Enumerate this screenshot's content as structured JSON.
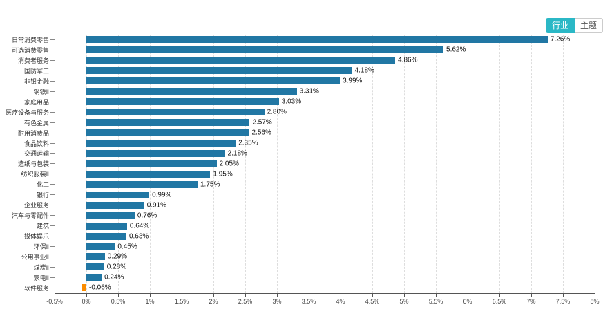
{
  "toolbar": {
    "buttons": [
      {
        "label": "行业",
        "active": true
      },
      {
        "label": "主题",
        "active": false
      }
    ]
  },
  "colors": {
    "bar_positive": "#2177a4",
    "bar_negative": "#fb8c00",
    "toggle_active": "#2bb8c6",
    "grid_line": "#dddddd",
    "axis_line": "#555555"
  },
  "chart_data": {
    "type": "bar",
    "orientation": "horizontal",
    "title": "",
    "xlabel": "",
    "ylabel": "",
    "grid": "vertical-dashed",
    "xlim": [
      -0.5,
      8
    ],
    "categories": [
      "日常消费零售",
      "可选消费零售",
      "消费者服务",
      "国防军工",
      "非银金融",
      "钢铁Ⅱ",
      "家庭用品",
      "医疗设备与服务",
      "有色金属",
      "耐用消费品",
      "食品饮料",
      "交通运输",
      "造纸与包装",
      "纺织服装Ⅱ",
      "化工",
      "银行",
      "企业服务",
      "汽车与零配件",
      "建筑",
      "媒体娱乐",
      "环保Ⅱ",
      "公用事业Ⅱ",
      "煤炭Ⅱ",
      "家电Ⅱ",
      "软件服务"
    ],
    "values": [
      7.26,
      5.62,
      4.86,
      4.18,
      3.99,
      3.31,
      3.03,
      2.8,
      2.57,
      2.56,
      2.35,
      2.18,
      2.05,
      1.95,
      1.75,
      0.99,
      0.91,
      0.76,
      0.64,
      0.63,
      0.45,
      0.29,
      0.28,
      0.24,
      -0.06
    ],
    "value_labels": [
      "7.26%",
      "5.62%",
      "4.86%",
      "4.18%",
      "3.99%",
      "3.31%",
      "3.03%",
      "2.80%",
      "2.57%",
      "2.56%",
      "2.35%",
      "2.18%",
      "2.05%",
      "1.95%",
      "1.75%",
      "0.99%",
      "0.91%",
      "0.76%",
      "0.64%",
      "0.63%",
      "0.45%",
      "0.29%",
      "0.28%",
      "0.24%",
      "-0.06%"
    ],
    "xticks": [
      -0.5,
      0,
      0.5,
      1,
      1.5,
      2,
      2.5,
      3,
      3.5,
      4,
      4.5,
      5,
      5.5,
      6,
      6.5,
      7,
      7.5,
      8
    ],
    "xtick_labels": [
      "-0.5%",
      "0%",
      "0.5%",
      "1%",
      "1.5%",
      "2%",
      "2.5%",
      "3%",
      "3.5%",
      "4%",
      "4.5%",
      "5%",
      "5.5%",
      "6%",
      "6.5%",
      "7%",
      "7.5%",
      "8%"
    ]
  }
}
